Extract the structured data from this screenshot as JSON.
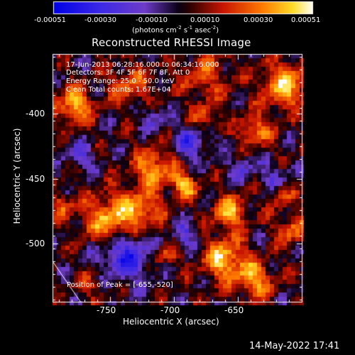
{
  "colorbar": {
    "ticks": [
      "-0.00051",
      "-0.00030",
      "-0.00010",
      "0.00010",
      "0.00030",
      "0.00051"
    ],
    "units_prefix": "(photons cm",
    "units_exp1": "-2",
    "units_mid": " s",
    "units_exp2": "-1",
    "units_mid2": " asec",
    "units_exp3": "-2",
    "units_suffix": ")"
  },
  "plot": {
    "title": "Reconstructed RHESSI Image",
    "info_lines": [
      "17-Jun-2013 06:28:16.000 to 06:34:16.000",
      "Detectors: 3F 4F 5F 6F 7F 8F, Att 0",
      "Energy Range: 25.0 - 50.0 keV",
      "Clean     Total counts: 1.67E+04"
    ],
    "peak_text": "Position of Peak = [-655,-520]",
    "x_title": "Heliocentric X (arcsec)",
    "y_title": "Heliocentric Y (arcsec)",
    "x_ticks": [
      "-750",
      "-700",
      "-650"
    ],
    "y_ticks": [
      "-400",
      "-450",
      "-500"
    ]
  },
  "footer": {
    "date": "14-May-2022 17:41"
  },
  "colors": {
    "background": "#000000",
    "text": "#ffffff",
    "frame": "#ffffff"
  }
}
